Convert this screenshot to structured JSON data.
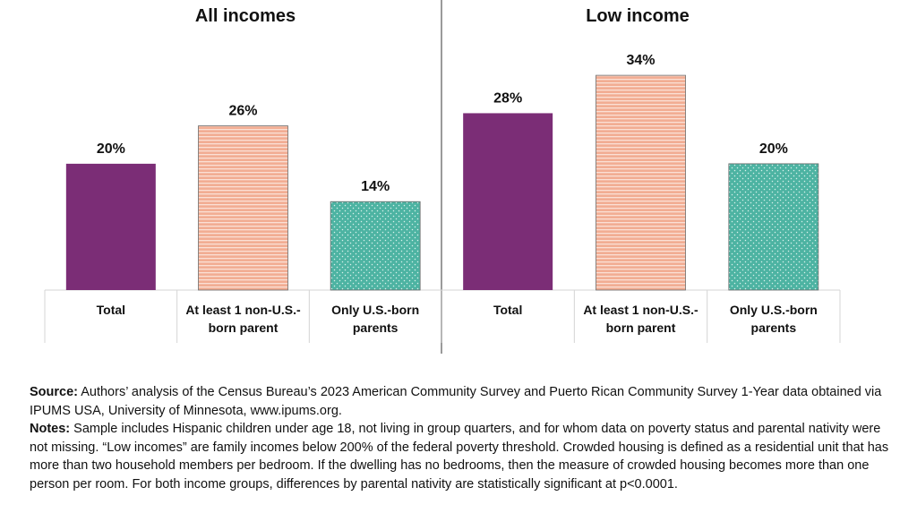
{
  "chart_data": [
    {
      "type": "bar",
      "title": "All incomes",
      "categories": [
        "Total",
        "At least 1 non-U.S.-born parent",
        "Only U.S.-born parents"
      ],
      "category_label_lines": [
        [
          "Total"
        ],
        [
          "At least 1 non-U.S.-",
          "born parent"
        ],
        [
          "Only U.S.-born",
          "parents"
        ]
      ],
      "values": [
        20,
        26,
        14
      ],
      "value_labels": [
        "20%",
        "26%",
        "14%"
      ],
      "ylim": [
        0,
        36
      ],
      "bar_colors": [
        "#7b2d76",
        "#f2ad93",
        "#4db3a2"
      ],
      "bar_patterns": [
        "solid",
        "horizontal-stripes",
        "dots"
      ]
    },
    {
      "type": "bar",
      "title": "Low income",
      "categories": [
        "Total",
        "At least 1 non-U.S.-born parent",
        "Only U.S.-born parents"
      ],
      "category_label_lines": [
        [
          "Total"
        ],
        [
          "At least 1 non-U.S.-",
          "born parent"
        ],
        [
          "Only U.S.-born",
          "parents"
        ]
      ],
      "values": [
        28,
        34,
        20
      ],
      "value_labels": [
        "28%",
        "34%",
        "20%"
      ],
      "ylim": [
        0,
        36
      ],
      "bar_colors": [
        "#7b2d76",
        "#f2ad93",
        "#4db3a2"
      ],
      "bar_patterns": [
        "solid",
        "horizontal-stripes",
        "dots"
      ]
    }
  ],
  "footnotes": {
    "source_label": "Source:",
    "source_text": " Authors’ analysis of the Census Bureau’s 2023 American Community Survey and Puerto Rican Community Survey 1-Year data obtained via IPUMS USA, University of Minnesota, www.ipums.org.",
    "notes_label": "Notes:",
    "notes_text": " Sample includes Hispanic children under age 18, not living in group quarters, and for whom data on poverty status and parental nativity were not missing. “Low incomes” are family incomes below 200% of the federal poverty threshold. Crowded housing is defined as a residential unit that has more than two household members per bedroom. If the dwelling has no bedrooms, then the measure of crowded housing becomes more than one person per room. For both income groups, differences by parental nativity are statistically significant at p<0.0001."
  }
}
